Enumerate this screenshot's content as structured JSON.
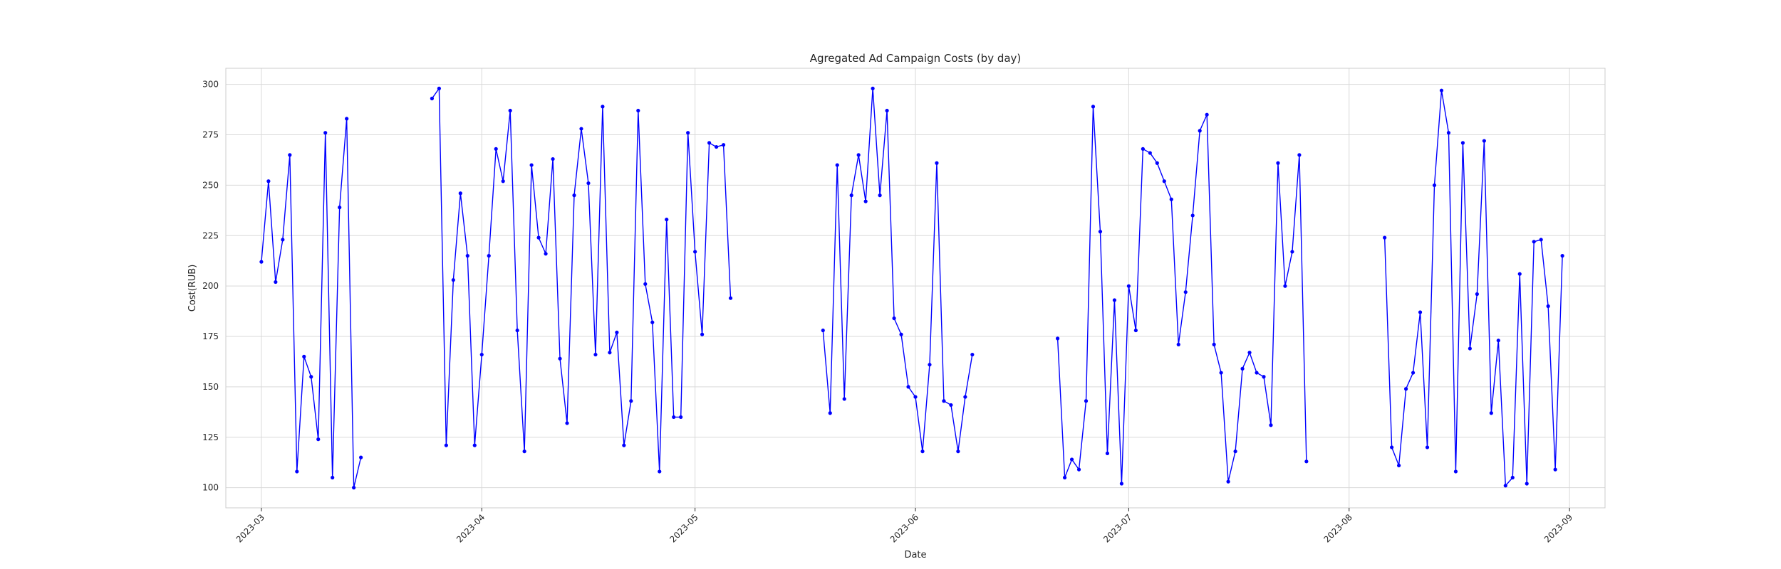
{
  "chart_data": {
    "type": "line",
    "title": "Agregated Ad Campaign Costs (by day)",
    "xlabel": "Date",
    "ylabel": "Cost(RUB)",
    "x_type": "date",
    "xlim": [
      "2023-02-24",
      "2023-09-06"
    ],
    "ylim": [
      90,
      308
    ],
    "grid": true,
    "line_color": "#0000ff",
    "marker_color": "#0000ff",
    "x_ticks": [
      {
        "date": "2023-03-01",
        "label": "2023-03"
      },
      {
        "date": "2023-04-01",
        "label": "2023-04"
      },
      {
        "date": "2023-05-01",
        "label": "2023-05"
      },
      {
        "date": "2023-06-01",
        "label": "2023-06"
      },
      {
        "date": "2023-07-01",
        "label": "2023-07"
      },
      {
        "date": "2023-08-01",
        "label": "2023-08"
      },
      {
        "date": "2023-09-01",
        "label": "2023-09"
      }
    ],
    "y_ticks": [
      100,
      125,
      150,
      175,
      200,
      225,
      250,
      275,
      300
    ],
    "series": [
      {
        "segments": [
          [
            [
              "2023-03-01",
              212
            ],
            [
              "2023-03-02",
              252
            ],
            [
              "2023-03-03",
              202
            ],
            [
              "2023-03-04",
              223
            ],
            [
              "2023-03-05",
              265
            ],
            [
              "2023-03-06",
              108
            ],
            [
              "2023-03-07",
              165
            ],
            [
              "2023-03-08",
              155
            ],
            [
              "2023-03-09",
              124
            ],
            [
              "2023-03-10",
              276
            ],
            [
              "2023-03-11",
              105
            ],
            [
              "2023-03-12",
              239
            ],
            [
              "2023-03-13",
              283
            ],
            [
              "2023-03-14",
              100
            ],
            [
              "2023-03-15",
              115
            ]
          ],
          [
            [
              "2023-03-25",
              293
            ],
            [
              "2023-03-26",
              298
            ],
            [
              "2023-03-27",
              121
            ],
            [
              "2023-03-28",
              203
            ],
            [
              "2023-03-29",
              246
            ],
            [
              "2023-03-30",
              215
            ],
            [
              "2023-03-31",
              121
            ],
            [
              "2023-04-01",
              166
            ],
            [
              "2023-04-02",
              215
            ],
            [
              "2023-04-03",
              268
            ],
            [
              "2023-04-04",
              252
            ],
            [
              "2023-04-05",
              287
            ],
            [
              "2023-04-06",
              178
            ],
            [
              "2023-04-07",
              118
            ],
            [
              "2023-04-08",
              260
            ],
            [
              "2023-04-09",
              224
            ],
            [
              "2023-04-10",
              216
            ],
            [
              "2023-04-11",
              263
            ],
            [
              "2023-04-12",
              164
            ],
            [
              "2023-04-13",
              132
            ],
            [
              "2023-04-14",
              245
            ],
            [
              "2023-04-15",
              278
            ],
            [
              "2023-04-16",
              251
            ],
            [
              "2023-04-17",
              166
            ],
            [
              "2023-04-18",
              289
            ],
            [
              "2023-04-19",
              167
            ],
            [
              "2023-04-20",
              177
            ],
            [
              "2023-04-21",
              121
            ],
            [
              "2023-04-22",
              143
            ],
            [
              "2023-04-23",
              287
            ],
            [
              "2023-04-24",
              201
            ],
            [
              "2023-04-25",
              182
            ],
            [
              "2023-04-26",
              108
            ],
            [
              "2023-04-27",
              233
            ],
            [
              "2023-04-28",
              135
            ],
            [
              "2023-04-29",
              135
            ],
            [
              "2023-04-30",
              276
            ],
            [
              "2023-05-01",
              217
            ],
            [
              "2023-05-02",
              176
            ],
            [
              "2023-05-03",
              271
            ],
            [
              "2023-05-04",
              269
            ],
            [
              "2023-05-05",
              270
            ],
            [
              "2023-05-06",
              194
            ]
          ],
          [
            [
              "2023-05-19",
              178
            ],
            [
              "2023-05-20",
              137
            ],
            [
              "2023-05-21",
              260
            ],
            [
              "2023-05-22",
              144
            ],
            [
              "2023-05-23",
              245
            ],
            [
              "2023-05-24",
              265
            ],
            [
              "2023-05-25",
              242
            ],
            [
              "2023-05-26",
              298
            ],
            [
              "2023-05-27",
              245
            ],
            [
              "2023-05-28",
              287
            ],
            [
              "2023-05-29",
              184
            ],
            [
              "2023-05-30",
              176
            ],
            [
              "2023-05-31",
              150
            ],
            [
              "2023-06-01",
              145
            ],
            [
              "2023-06-02",
              118
            ],
            [
              "2023-06-03",
              161
            ],
            [
              "2023-06-04",
              261
            ],
            [
              "2023-06-05",
              143
            ],
            [
              "2023-06-06",
              141
            ],
            [
              "2023-06-07",
              118
            ],
            [
              "2023-06-08",
              145
            ],
            [
              "2023-06-09",
              166
            ]
          ],
          [
            [
              "2023-06-21",
              174
            ],
            [
              "2023-06-22",
              105
            ],
            [
              "2023-06-23",
              114
            ],
            [
              "2023-06-24",
              109
            ],
            [
              "2023-06-25",
              143
            ],
            [
              "2023-06-26",
              289
            ],
            [
              "2023-06-27",
              227
            ],
            [
              "2023-06-28",
              117
            ],
            [
              "2023-06-29",
              193
            ],
            [
              "2023-06-30",
              102
            ],
            [
              "2023-07-01",
              200
            ],
            [
              "2023-07-02",
              178
            ],
            [
              "2023-07-03",
              268
            ],
            [
              "2023-07-04",
              266
            ],
            [
              "2023-07-05",
              261
            ],
            [
              "2023-07-06",
              252
            ],
            [
              "2023-07-07",
              243
            ],
            [
              "2023-07-08",
              171
            ],
            [
              "2023-07-09",
              197
            ],
            [
              "2023-07-10",
              235
            ],
            [
              "2023-07-11",
              277
            ],
            [
              "2023-07-12",
              285
            ],
            [
              "2023-07-13",
              171
            ],
            [
              "2023-07-14",
              157
            ],
            [
              "2023-07-15",
              103
            ],
            [
              "2023-07-16",
              118
            ],
            [
              "2023-07-17",
              159
            ],
            [
              "2023-07-18",
              167
            ],
            [
              "2023-07-19",
              157
            ],
            [
              "2023-07-20",
              155
            ],
            [
              "2023-07-21",
              131
            ],
            [
              "2023-07-22",
              261
            ],
            [
              "2023-07-23",
              200
            ],
            [
              "2023-07-24",
              217
            ],
            [
              "2023-07-25",
              265
            ],
            [
              "2023-07-26",
              113
            ]
          ],
          [
            [
              "2023-08-06",
              224
            ],
            [
              "2023-08-07",
              120
            ],
            [
              "2023-08-08",
              111
            ],
            [
              "2023-08-09",
              149
            ],
            [
              "2023-08-10",
              157
            ],
            [
              "2023-08-11",
              187
            ],
            [
              "2023-08-12",
              120
            ],
            [
              "2023-08-13",
              250
            ],
            [
              "2023-08-14",
              297
            ],
            [
              "2023-08-15",
              276
            ],
            [
              "2023-08-16",
              108
            ],
            [
              "2023-08-17",
              271
            ],
            [
              "2023-08-18",
              169
            ],
            [
              "2023-08-19",
              196
            ],
            [
              "2023-08-20",
              272
            ],
            [
              "2023-08-21",
              137
            ],
            [
              "2023-08-22",
              173
            ],
            [
              "2023-08-23",
              101
            ],
            [
              "2023-08-24",
              105
            ],
            [
              "2023-08-25",
              206
            ],
            [
              "2023-08-26",
              102
            ],
            [
              "2023-08-27",
              222
            ],
            [
              "2023-08-28",
              223
            ],
            [
              "2023-08-29",
              190
            ],
            [
              "2023-08-30",
              109
            ],
            [
              "2023-08-31",
              215
            ]
          ]
        ]
      }
    ]
  }
}
